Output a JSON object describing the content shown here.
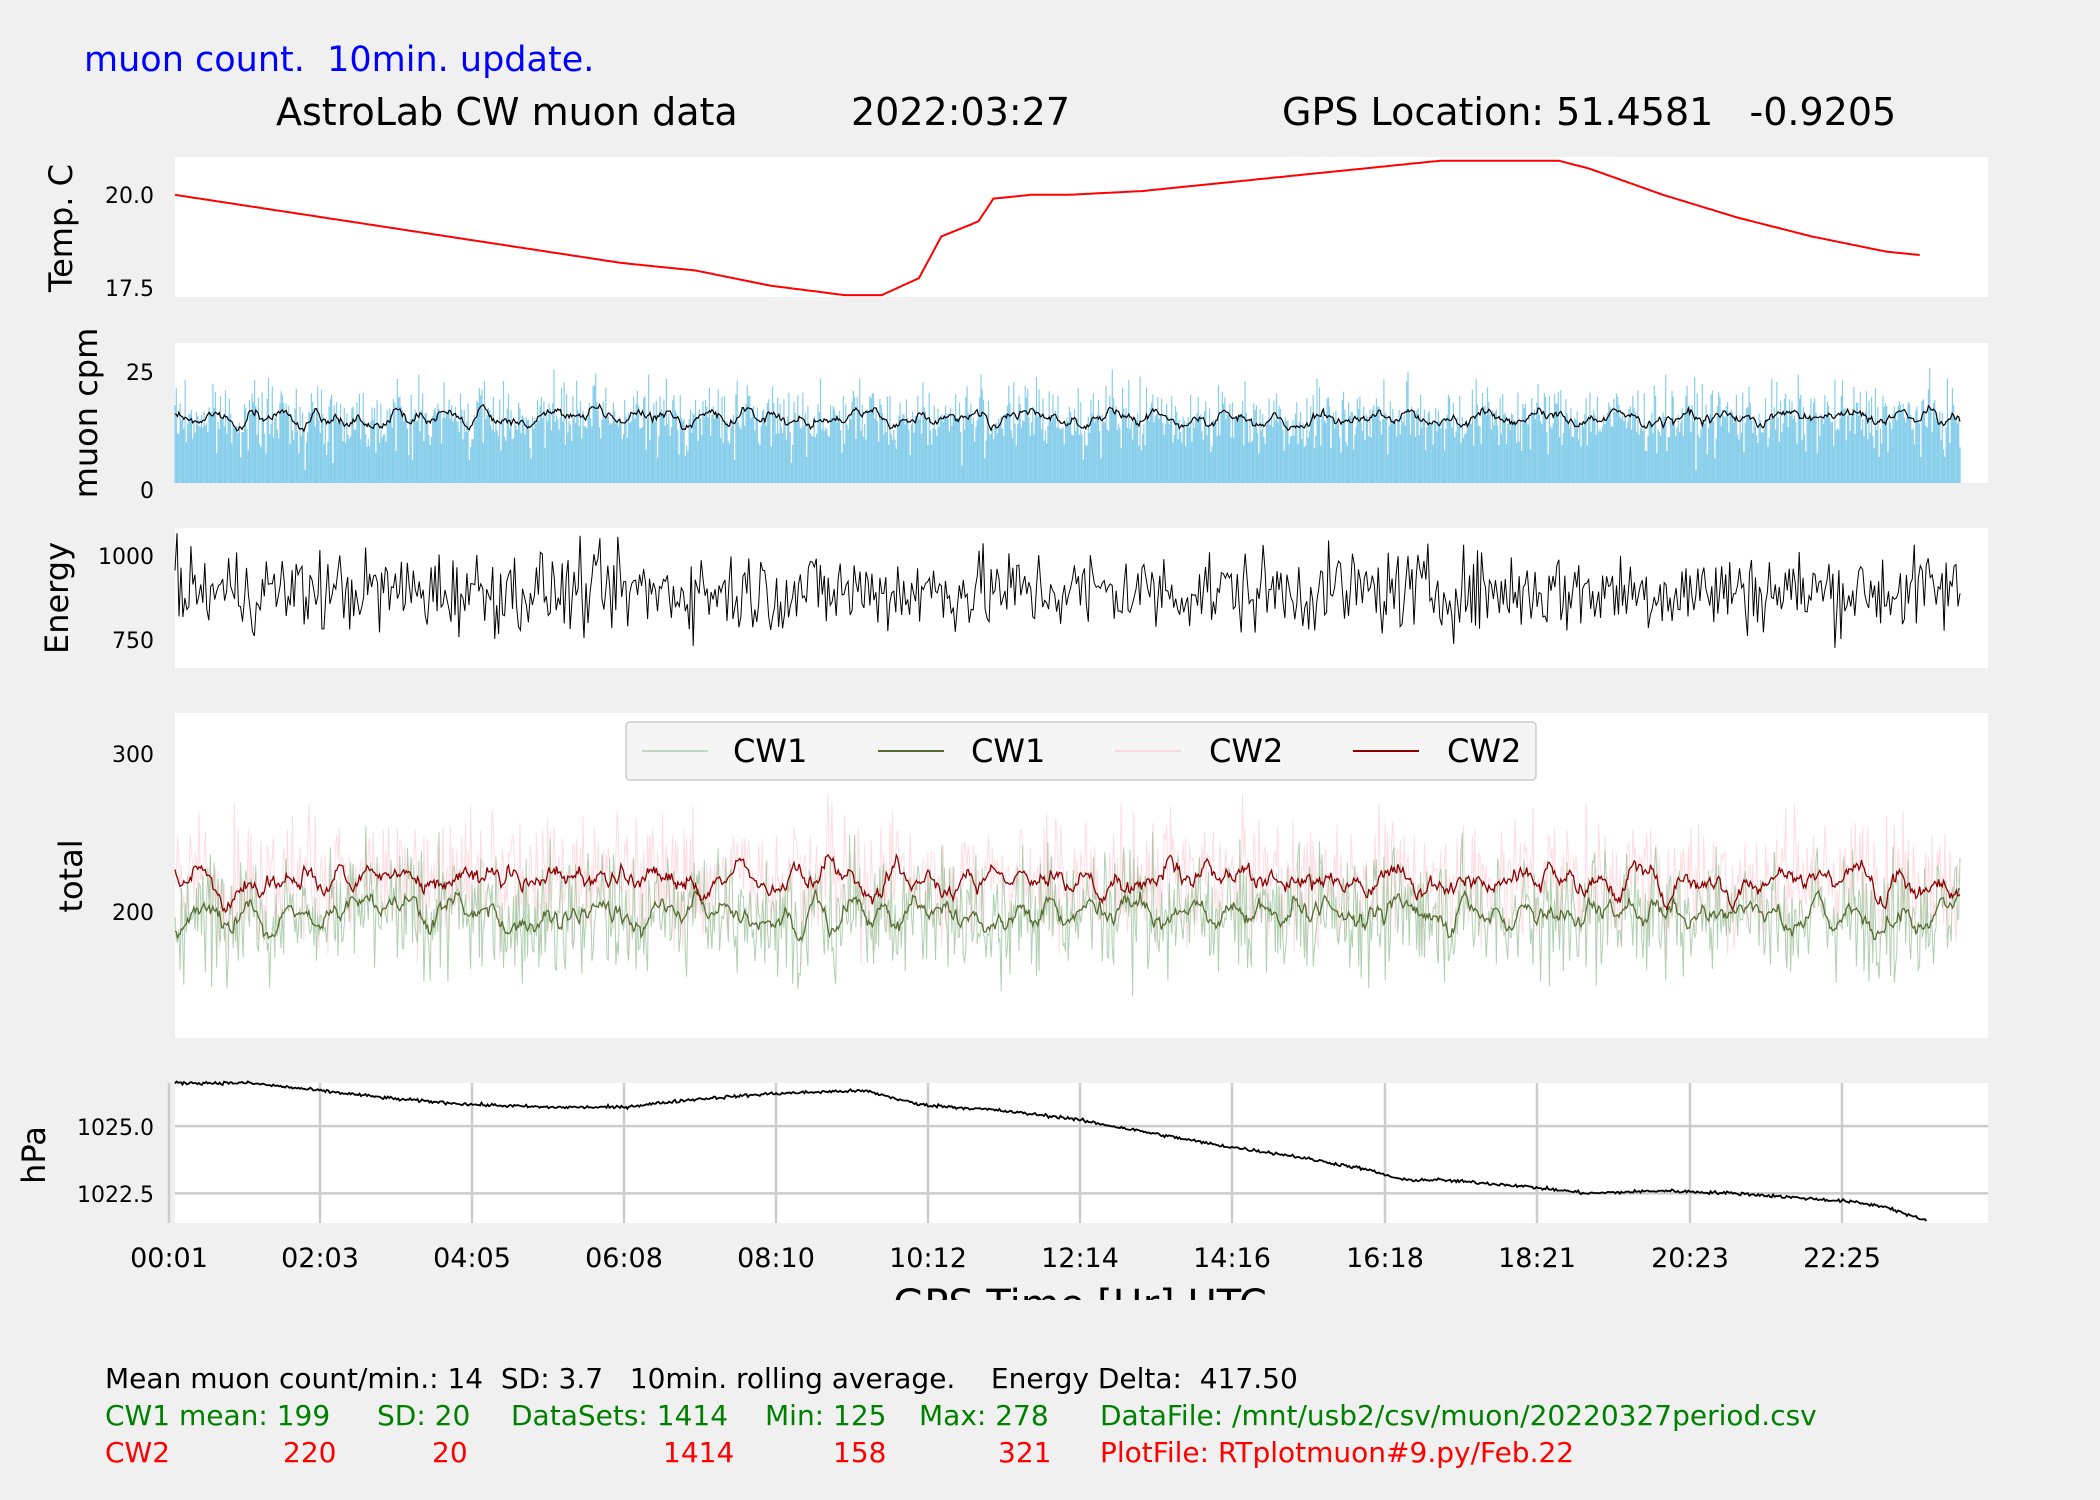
{
  "header": {
    "note": "muon count.  10min. update.",
    "title": "AstroLab CW muon data",
    "date": "2022:03:27",
    "gps_location": "GPS Location: 51.4581   -0.9205"
  },
  "colors": {
    "temperature": "#ff0000",
    "muon_bars": "#87ceeb",
    "cw1_raw": "#8fbc8f",
    "cw1_avg": "#556b2f",
    "cw2_raw": "#ffc0cb",
    "cw2_avg": "#8b0000",
    "pressure": "#000000",
    "panel_bg": "#ffffff",
    "page_bg": "#f0f0f0",
    "grid": "#cccccc"
  },
  "chart_data": [
    {
      "type": "line",
      "ylabel": "Temp. C",
      "yticks": [
        "20.0",
        "17.5"
      ],
      "ylim": [
        17.3,
        21.0
      ],
      "x_hours": [
        0.0,
        1.0,
        2.0,
        3.0,
        4.0,
        5.0,
        6.0,
        7.0,
        8.0,
        9.0,
        9.5,
        10.0,
        10.3,
        10.8,
        11.0,
        11.5,
        12.0,
        13.0,
        14.0,
        15.0,
        16.0,
        17.0,
        18.0,
        18.6,
        19.0,
        20.0,
        21.0,
        22.0,
        23.0,
        23.5
      ],
      "values": [
        20.0,
        19.7,
        19.4,
        19.1,
        18.8,
        18.5,
        18.2,
        18.0,
        17.6,
        17.35,
        17.35,
        17.8,
        18.9,
        19.3,
        19.9,
        20.0,
        20.0,
        20.1,
        20.3,
        20.5,
        20.7,
        20.9,
        20.9,
        20.9,
        20.7,
        20.0,
        19.4,
        18.9,
        18.5,
        18.4
      ]
    },
    {
      "type": "bar",
      "ylabel": "muon cpm",
      "yticks": [
        "25",
        "0"
      ],
      "ylim": [
        0,
        30
      ],
      "mean": 14,
      "sd": 3.7,
      "rolling_average": "10min."
    },
    {
      "type": "line",
      "ylabel": "Energy",
      "yticks": [
        "1000",
        "750"
      ],
      "ylim": [
        665,
        1075
      ],
      "mean": 890,
      "min": 675,
      "max": 1060
    },
    {
      "type": "line",
      "ylabel": "total",
      "yticks": [
        "300",
        "200"
      ],
      "ylim": [
        120,
        325
      ],
      "legend_position": "top-center",
      "series": [
        {
          "name": "CW1",
          "style": "raw",
          "mean": 199,
          "sd": 20,
          "min": 125,
          "max": 278
        },
        {
          "name": "CW1",
          "style": "rolling-average",
          "mean": 199
        },
        {
          "name": "CW2",
          "style": "raw",
          "mean": 220,
          "sd": 20,
          "min": 158,
          "max": 321
        },
        {
          "name": "CW2",
          "style": "rolling-average",
          "mean": 220
        }
      ]
    },
    {
      "type": "line",
      "ylabel": "hPa",
      "yticks": [
        "1025.0",
        "1022.5"
      ],
      "ylim": [
        1021.4,
        1026.6
      ],
      "grid": true,
      "x_hours": [
        0.0,
        1.0,
        2.0,
        3.0,
        4.0,
        5.0,
        6.0,
        7.0,
        8.0,
        9.0,
        9.3,
        10.0,
        11.0,
        12.0,
        13.0,
        14.0,
        15.0,
        16.0,
        16.5,
        17.0,
        18.0,
        19.0,
        20.0,
        21.0,
        21.5,
        22.0,
        22.5,
        23.0,
        23.5
      ],
      "values": [
        1026.6,
        1026.6,
        1026.3,
        1026.0,
        1025.8,
        1025.7,
        1025.7,
        1026.0,
        1026.2,
        1026.3,
        1026.3,
        1025.8,
        1025.6,
        1025.3,
        1024.8,
        1024.3,
        1023.9,
        1023.4,
        1023.0,
        1023.0,
        1022.8,
        1022.5,
        1022.6,
        1022.5,
        1022.4,
        1022.3,
        1022.2,
        1022.0,
        1021.5
      ]
    }
  ],
  "x_axis": {
    "ticks": [
      "00:01",
      "02:03",
      "04:05",
      "06:08",
      "08:10",
      "10:12",
      "12:14",
      "14:16",
      "16:18",
      "18:21",
      "20:23",
      "22:25"
    ],
    "label": "GPS Time  [Hr] UTC"
  },
  "legend": [
    "CW1",
    "CW1",
    "CW2",
    "CW2"
  ],
  "footer": {
    "line1": "Mean muon count/min.: 14  SD: 3.7   10min. rolling average.    Energy Delta:  417.50",
    "cw1_label": "CW1 mean: 199",
    "cw1_sd": "SD: 20",
    "cw1_datasets": "DataSets: 1414",
    "cw1_min": "Min: 125",
    "cw1_max": "Max: 278",
    "datafile": "DataFile: /mnt/usb2/csv/muon/20220327period.csv",
    "cw2_label": "CW2",
    "cw2_mean": "220",
    "cw2_sd": "20",
    "cw2_datasets": "1414",
    "cw2_min": "158",
    "cw2_max": "321",
    "plotfile": "PlotFile: RTplotmuon#9.py/Feb.22"
  }
}
